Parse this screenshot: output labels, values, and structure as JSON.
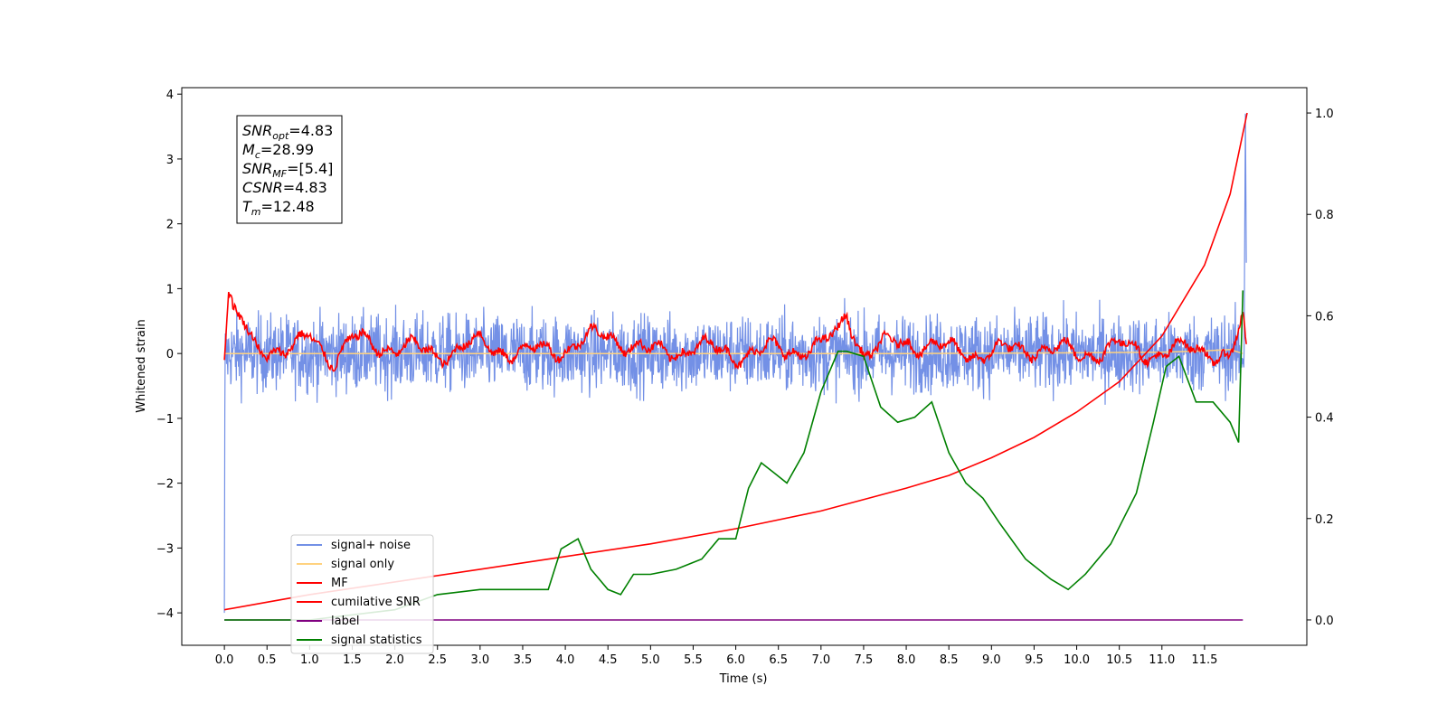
{
  "chart_data": {
    "type": "line",
    "xlabel": "Time (s)",
    "ylabel_left": "Whitened strain",
    "ylabel_right": "",
    "xlim": [
      -0.5,
      12.7
    ],
    "ylim_left": [
      -4.5,
      4.1
    ],
    "ylim_right": [
      -0.05,
      1.05
    ],
    "x_ticks": [
      "0.0",
      "0.5",
      "1.0",
      "1.5",
      "2.0",
      "2.5",
      "3.0",
      "3.5",
      "4.0",
      "4.5",
      "5.0",
      "5.5",
      "6.0",
      "6.5",
      "7.0",
      "7.5",
      "8.0",
      "8.5",
      "9.0",
      "9.5",
      "10.0",
      "10.5",
      "11.0",
      "11.5"
    ],
    "y_ticks_left": [
      "4",
      "3",
      "2",
      "1",
      "0",
      "−1",
      "−2",
      "−3",
      "−4"
    ],
    "y_ticks_right": [
      "1.0",
      "0.8",
      "0.6",
      "0.4",
      "0.2",
      "0.0"
    ],
    "grid": false,
    "legend_position": "lower-left",
    "legend": [
      {
        "label": "signal+ noise",
        "color": "#7390e6"
      },
      {
        "label": "signal only",
        "color": "#ffd27f"
      },
      {
        "label": "MF",
        "color": "#ff0000"
      },
      {
        "label": "cumilative SNR",
        "color": "#ff0000"
      },
      {
        "label": "label",
        "color": "#800080"
      },
      {
        "label": "signal statistics",
        "color": "#008000"
      }
    ],
    "annotation": [
      {
        "base": "SNR",
        "sub": "opt",
        "value": "=4.83"
      },
      {
        "base": "M",
        "sub": "c",
        "value": "=28.99"
      },
      {
        "base": "SNR",
        "sub": "MF",
        "value": "=[5.4]"
      },
      {
        "base": "CSNR",
        "sub": "",
        "value": "=4.83"
      },
      {
        "base": "T",
        "sub": "m",
        "value": "=12.48"
      }
    ],
    "series": [
      {
        "name": "signal+ noise",
        "axis": "left",
        "description_range": [
          -1.5,
          1.5
        ],
        "endpoints": {
          "start_min": -4.0,
          "end_max": 3.7
        }
      },
      {
        "name": "signal only",
        "axis": "left",
        "x": [
          0.0,
          2.0,
          4.0,
          6.0,
          8.0,
          10.0,
          11.0,
          11.5,
          11.8,
          11.95
        ],
        "y": [
          0.0,
          0.0,
          0.0,
          0.0,
          0.0,
          0.01,
          0.02,
          0.04,
          0.06,
          0.0
        ]
      },
      {
        "name": "MF",
        "axis": "left",
        "x": [
          0.0,
          0.05,
          0.1,
          0.2,
          0.3,
          0.5,
          0.8,
          1.0,
          1.3,
          1.5,
          2.0,
          2.5,
          3.0,
          3.5,
          4.0,
          4.5,
          5.0,
          5.5,
          6.0,
          6.5,
          7.0,
          7.2,
          7.3,
          7.5,
          8.0,
          8.5,
          9.0,
          9.5,
          10.0,
          10.5,
          11.0,
          11.5,
          11.8,
          11.95,
          12.0
        ],
        "y": [
          -0.1,
          0.95,
          0.6,
          0.5,
          0.2,
          0.1,
          0.0,
          0.3,
          -0.1,
          0.2,
          0.1,
          0.0,
          0.15,
          0.0,
          0.1,
          0.3,
          0.0,
          0.1,
          0.0,
          0.05,
          0.1,
          0.3,
          0.65,
          0.0,
          0.2,
          0.05,
          0.0,
          0.1,
          0.0,
          0.1,
          0.0,
          0.1,
          -0.1,
          0.5,
          -0.1
        ]
      },
      {
        "name": "cumilative SNR",
        "axis": "right",
        "x": [
          0.0,
          0.5,
          1.0,
          2.0,
          3.0,
          4.0,
          5.0,
          6.0,
          7.0,
          8.0,
          8.5,
          9.0,
          9.5,
          10.0,
          10.5,
          11.0,
          11.5,
          11.8,
          12.0
        ],
        "y": [
          0.02,
          0.035,
          0.05,
          0.075,
          0.1,
          0.125,
          0.15,
          0.18,
          0.215,
          0.26,
          0.285,
          0.32,
          0.36,
          0.41,
          0.47,
          0.56,
          0.7,
          0.84,
          1.0
        ]
      },
      {
        "name": "label",
        "axis": "right",
        "x": [
          0.0,
          11.95
        ],
        "y": [
          0.0,
          0.0
        ]
      },
      {
        "name": "signal statistics",
        "axis": "right",
        "x": [
          0.0,
          0.5,
          1.0,
          1.5,
          2.0,
          2.5,
          3.0,
          3.5,
          3.8,
          3.95,
          4.15,
          4.3,
          4.5,
          4.65,
          4.8,
          5.0,
          5.3,
          5.6,
          5.8,
          6.0,
          6.15,
          6.3,
          6.45,
          6.6,
          6.8,
          7.0,
          7.2,
          7.3,
          7.5,
          7.7,
          7.9,
          8.1,
          8.3,
          8.5,
          8.7,
          8.9,
          9.1,
          9.4,
          9.7,
          9.9,
          10.1,
          10.4,
          10.7,
          10.9,
          11.05,
          11.2,
          11.4,
          11.6,
          11.8,
          11.9,
          11.95
        ],
        "y": [
          0.0,
          0.0,
          0.0,
          0.01,
          0.02,
          0.05,
          0.06,
          0.06,
          0.06,
          0.14,
          0.16,
          0.1,
          0.06,
          0.05,
          0.09,
          0.09,
          0.1,
          0.12,
          0.16,
          0.16,
          0.26,
          0.31,
          0.29,
          0.27,
          0.33,
          0.45,
          0.53,
          0.53,
          0.52,
          0.42,
          0.39,
          0.4,
          0.43,
          0.33,
          0.27,
          0.24,
          0.19,
          0.12,
          0.08,
          0.06,
          0.09,
          0.15,
          0.25,
          0.39,
          0.5,
          0.52,
          0.43,
          0.43,
          0.39,
          0.35,
          0.65
        ]
      }
    ]
  }
}
